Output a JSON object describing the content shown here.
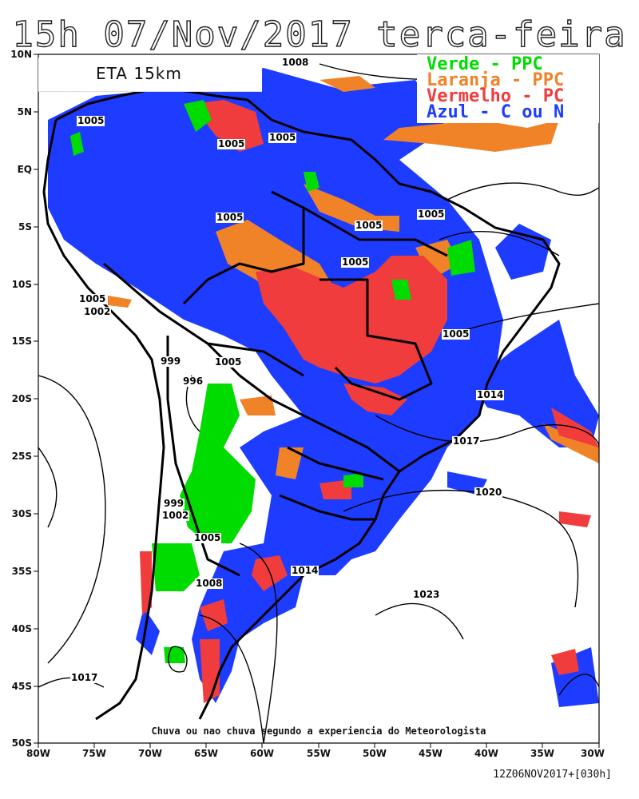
{
  "title": "15h 07/Nov/2017 terca-feira",
  "model_label": "ETA 15km",
  "legend": [
    {
      "label": "Verde - PPC",
      "color": "#00dc00"
    },
    {
      "label": "Laranja - PPC",
      "color": "#f08228"
    },
    {
      "label": "Vermelho - PC",
      "color": "#f03c3c"
    },
    {
      "label": "Azul - C ou N",
      "color": "#1e3cff"
    }
  ],
  "footnote": "Chuva ou nao chuva segundo a experiencia do Meteorologista",
  "run_info": "12Z06NOV2017+[030h]",
  "lat_labels": [
    "10N",
    "5N",
    "EQ",
    "5S",
    "10S",
    "15S",
    "20S",
    "25S",
    "30S",
    "35S",
    "40S",
    "45S",
    "50S"
  ],
  "lon_labels": [
    "80W",
    "75W",
    "70W",
    "65W",
    "60W",
    "55W",
    "50W",
    "45W",
    "40W",
    "35W",
    "30W"
  ],
  "isobar_labels": [
    "1008",
    "1005",
    "1005",
    "1005",
    "1005",
    "1005",
    "1005",
    "1005",
    "1005",
    "1005",
    "1002",
    "999",
    "996",
    "1005",
    "1014",
    "1017",
    "1020",
    "999",
    "1002",
    "1005",
    "1014",
    "1008",
    "1023",
    "1017"
  ]
}
